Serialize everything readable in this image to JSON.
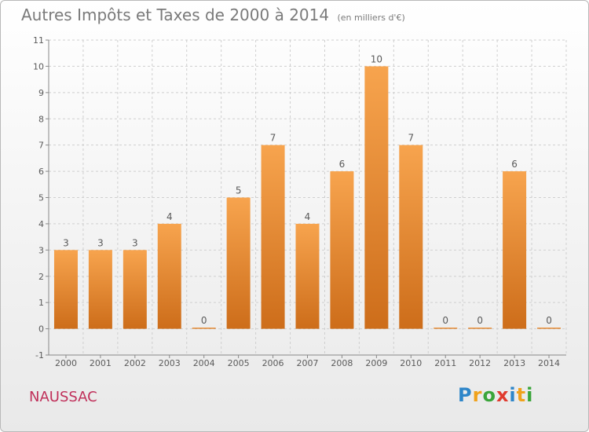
{
  "title": "Autres Impôts et Taxes de 2000 à 2014",
  "subtitle": "(en milliers d'€)",
  "location": "NAUSSAC",
  "brand": {
    "text": "Proxiti",
    "letters": [
      {
        "ch": "P",
        "color": "#2e86c9"
      },
      {
        "ch": "r",
        "color": "#f0a21c"
      },
      {
        "ch": "o",
        "color": "#3aa53a"
      },
      {
        "ch": "x",
        "color": "#e03b2e"
      },
      {
        "ch": "i",
        "color": "#2e86c9"
      },
      {
        "ch": "t",
        "color": "#f0a21c"
      },
      {
        "ch": "i",
        "color": "#3aa53a"
      }
    ]
  },
  "colors": {
    "bar_top": "#f7a44e",
    "bar_bottom": "#cd6d1a",
    "grid": "#cfcfcf",
    "text": "#5a5a5a"
  },
  "chart_data": {
    "type": "bar",
    "categories": [
      "2000",
      "2001",
      "2002",
      "2003",
      "2004",
      "2005",
      "2006",
      "2007",
      "2008",
      "2009",
      "2010",
      "2011",
      "2012",
      "2013",
      "2014"
    ],
    "values": [
      3,
      3,
      3,
      4,
      0,
      5,
      7,
      4,
      6,
      10,
      7,
      0,
      0,
      6,
      0
    ],
    "ylim": [
      -1,
      11
    ],
    "yticks": [
      -1,
      0,
      1,
      2,
      3,
      4,
      5,
      6,
      7,
      8,
      9,
      10,
      11
    ],
    "grid": true,
    "xlabel": "",
    "ylabel": ""
  }
}
